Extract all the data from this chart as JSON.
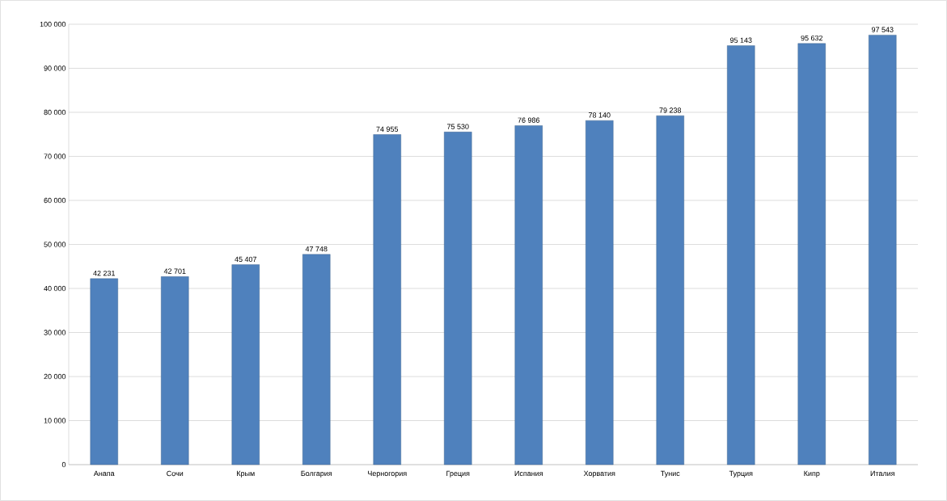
{
  "chart_data": {
    "type": "bar",
    "categories": [
      "Анапа",
      "Сочи",
      "Крым",
      "Болгария",
      "Черногория",
      "Греция",
      "Испания",
      "Хорватия",
      "Тунис",
      "Турция",
      "Кипр",
      "Италия"
    ],
    "values": [
      42231,
      42701,
      45407,
      47748,
      74955,
      75530,
      76986,
      78140,
      79238,
      95143,
      95632,
      97543
    ],
    "value_labels": [
      "42 231",
      "42 701",
      "45 407",
      "47 748",
      "74 955",
      "75 530",
      "76 986",
      "78 140",
      "79 238",
      "95 143",
      "95 632",
      "97 543"
    ],
    "color": "#4f81bd",
    "ylim": [
      0,
      100000
    ],
    "yticks": [
      0,
      {
        "value": 10000,
        "label": "10 000"
      },
      {
        "value": 20000,
        "label": "20 000"
      },
      {
        "value": 30000,
        "label": "30 000"
      },
      {
        "value": 40000,
        "label": "40 000"
      },
      {
        "value": 50000,
        "label": "50 000"
      },
      {
        "value": 60000,
        "label": "60 000"
      },
      {
        "value": 70000,
        "label": "70 000"
      },
      {
        "value": 80000,
        "label": "80 000"
      },
      {
        "value": 90000,
        "label": "90 000"
      },
      {
        "value": 100000,
        "label": "100 000"
      }
    ],
    "grid": "y"
  }
}
